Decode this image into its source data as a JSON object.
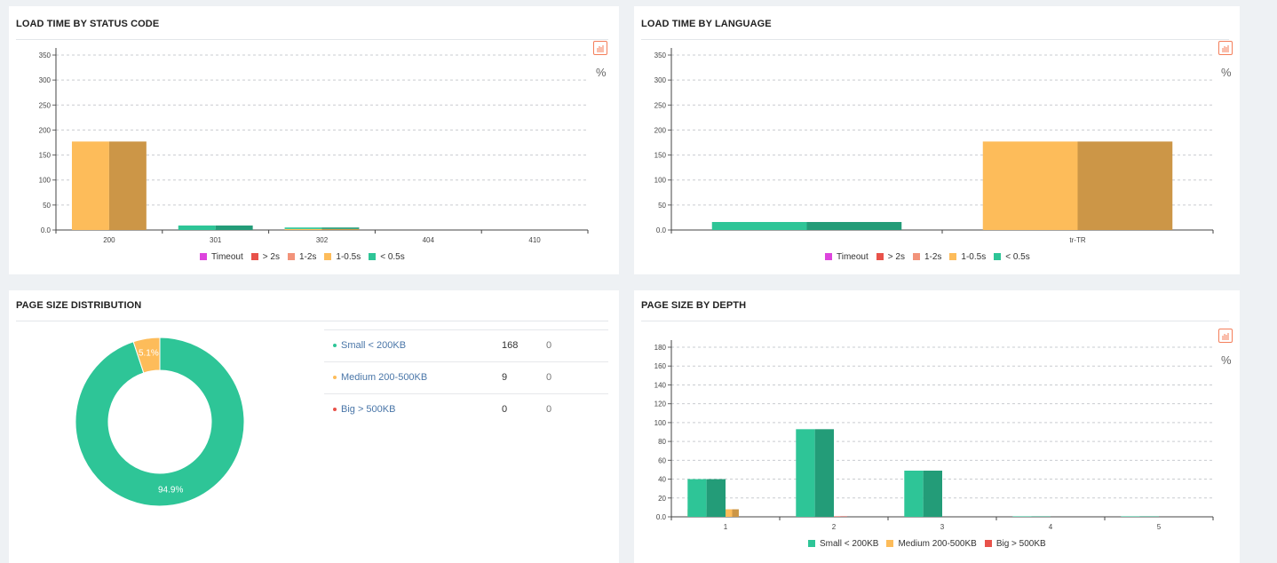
{
  "panels": {
    "status": {
      "title": "LOAD TIME BY STATUS CODE",
      "pct_label": "%"
    },
    "language": {
      "title": "LOAD TIME BY LANGUAGE",
      "pct_label": "%"
    },
    "distribution": {
      "title": "PAGE SIZE DISTRIBUTION"
    },
    "depth": {
      "title": "PAGE SIZE BY DEPTH",
      "pct_label": "%"
    }
  },
  "colors": {
    "timeout": "#dd44dd",
    "gt2s": "#e8524a",
    "s1_2": "#f2937a",
    "s1_05": "#fdbc5a",
    "s1_05_dark": "#cc9647",
    "lt05": "#2ec597",
    "lt05_dark": "#239c78",
    "medium": "#fdbc5a",
    "medium_dark": "#cc9647",
    "big": "#e8524a",
    "big_dark": "#b83f38",
    "small": "#2ec597",
    "small_dark": "#239c78",
    "link": "#4a76a8"
  },
  "load_legend": [
    {
      "label": "Timeout",
      "color": "#dd44dd"
    },
    {
      "label": "> 2s",
      "color": "#e8524a"
    },
    {
      "label": "1-2s",
      "color": "#f2937a"
    },
    {
      "label": "1-0.5s",
      "color": "#fdbc5a"
    },
    {
      "label": "< 0.5s",
      "color": "#2ec597"
    }
  ],
  "size_legend": [
    {
      "label": "Small < 200KB",
      "color": "#2ec597"
    },
    {
      "label": "Medium 200-500KB",
      "color": "#fdbc5a"
    },
    {
      "label": "Big > 500KB",
      "color": "#e8524a"
    }
  ],
  "distribution_rows": [
    {
      "label": "Small < 200KB",
      "count": "168",
      "extra": "0",
      "color": "#2ec597"
    },
    {
      "label": "Medium 200-500KB",
      "count": "9",
      "extra": "0",
      "color": "#fdbc5a"
    },
    {
      "label": "Big > 500KB",
      "count": "0",
      "extra": "0",
      "color": "#e8524a"
    }
  ],
  "chart_data": [
    {
      "type": "bar",
      "title": "LOAD TIME BY STATUS CODE",
      "categories": [
        "200",
        "301",
        "302",
        "404",
        "410"
      ],
      "series": [
        {
          "name": "1-0.5s",
          "values": [
            177,
            0,
            2,
            0,
            0
          ]
        },
        {
          "name": "< 0.5s",
          "values": [
            0,
            9,
            3,
            0,
            0
          ]
        }
      ],
      "yticks": [
        "0.0",
        "50",
        "100",
        "150",
        "200",
        "250",
        "300",
        "350"
      ],
      "ylim": [
        0,
        350
      ],
      "stacked": true,
      "legend": "bottom"
    },
    {
      "type": "bar",
      "title": "LOAD TIME BY LANGUAGE",
      "categories": [
        "",
        "tr-TR"
      ],
      "series": [
        {
          "name": "1-0.5s",
          "values": [
            0,
            177
          ]
        },
        {
          "name": "< 0.5s",
          "values": [
            16,
            0
          ]
        }
      ],
      "yticks": [
        "0.0",
        "50",
        "100",
        "150",
        "200",
        "250",
        "300",
        "350"
      ],
      "ylim": [
        0,
        350
      ],
      "stacked": true,
      "legend": "bottom"
    },
    {
      "type": "pie",
      "title": "PAGE SIZE DISTRIBUTION",
      "labels": [
        "Small < 200KB",
        "Medium 200-500KB",
        "Big > 500KB"
      ],
      "values": [
        168,
        9,
        0
      ],
      "slice_labels": [
        "94.9%",
        "5.1%",
        ""
      ],
      "donut": true
    },
    {
      "type": "bar",
      "title": "PAGE SIZE BY DEPTH",
      "categories": [
        "1",
        "2",
        "3",
        "4",
        "5"
      ],
      "series": [
        {
          "name": "Small < 200KB",
          "values": [
            40,
            93,
            49,
            0.5,
            0.5
          ]
        },
        {
          "name": "Medium 200-500KB",
          "values": [
            8,
            0,
            0,
            0,
            0
          ]
        },
        {
          "name": "Big > 500KB",
          "values": [
            0,
            0.5,
            0,
            0,
            0
          ]
        }
      ],
      "yticks": [
        "0.0",
        "20",
        "40",
        "60",
        "80",
        "100",
        "120",
        "140",
        "160",
        "180"
      ],
      "ylim": [
        0,
        180
      ],
      "legend": "bottom"
    }
  ]
}
